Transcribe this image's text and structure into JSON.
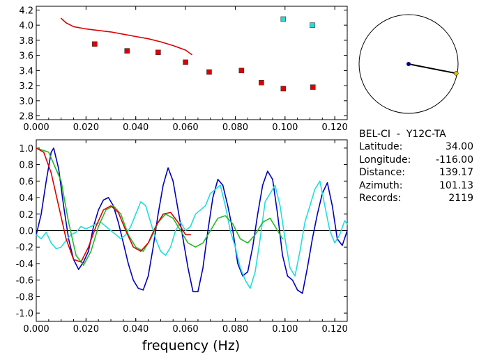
{
  "station": {
    "title": "BEL-CI  -  Y12C-TA",
    "fields": [
      {
        "label": "Latitude:",
        "value": "34.00"
      },
      {
        "label": "Longitude:",
        "value": "-116.00"
      },
      {
        "label": "Distance:",
        "value": "139.17"
      },
      {
        "label": "Azimuth:",
        "value": "101.13"
      },
      {
        "label": "Records:",
        "value": "2119"
      }
    ]
  },
  "chart_data": [
    {
      "type": "scatter",
      "xlim": [
        0.0,
        0.125
      ],
      "ylim": [
        2.75,
        4.25
      ],
      "xticks": [
        "0.000",
        "0.020",
        "0.040",
        "0.060",
        "0.080",
        "0.100",
        "0.120"
      ],
      "yticks": [
        "2.8",
        "3.0",
        "3.2",
        "3.4",
        "3.6",
        "3.8",
        "4.0",
        "4.2"
      ],
      "series": [
        {
          "kind": "line",
          "color": "#dd0000",
          "x": [
            0.01,
            0.012,
            0.015,
            0.02,
            0.025,
            0.03,
            0.035,
            0.04,
            0.045,
            0.05,
            0.055,
            0.06,
            0.0625
          ],
          "y": [
            4.09,
            4.03,
            3.98,
            3.95,
            3.93,
            3.91,
            3.88,
            3.85,
            3.82,
            3.78,
            3.73,
            3.67,
            3.61
          ]
        },
        {
          "kind": "markers",
          "color": "#dd0000",
          "x": [
            0.0235,
            0.0365,
            0.049,
            0.06,
            0.0695,
            0.0825,
            0.0905,
            0.0993,
            0.1112
          ],
          "y": [
            3.75,
            3.66,
            3.64,
            3.51,
            3.38,
            3.4,
            3.24,
            3.16,
            3.18
          ]
        },
        {
          "kind": "markers",
          "color": "#22dddd",
          "x": [
            0.0993,
            0.111
          ],
          "y": [
            4.08,
            4.0
          ]
        }
      ]
    },
    {
      "type": "line",
      "xlabel": "frequency (Hz)",
      "xlim": [
        0.0,
        0.125
      ],
      "ylim": [
        -1.1,
        1.1
      ],
      "xticks": [
        "0.000",
        "0.020",
        "0.040",
        "0.060",
        "0.080",
        "0.100",
        "0.120"
      ],
      "yticks": [
        "-1.0",
        "-0.8",
        "-0.6",
        "-0.4",
        "-0.2",
        "0.0",
        "0.2",
        "0.4",
        "0.6",
        "0.8",
        "1.0"
      ],
      "series": [
        {
          "color": "#0000bb",
          "x": [
            0,
            0.002,
            0.004,
            0.006,
            0.007,
            0.009,
            0.011,
            0.013,
            0.015,
            0.017,
            0.019,
            0.021,
            0.023,
            0.025,
            0.027,
            0.029,
            0.031,
            0.033,
            0.035,
            0.037,
            0.039,
            0.041,
            0.043,
            0.045,
            0.047,
            0.049,
            0.051,
            0.053,
            0.055,
            0.057,
            0.059,
            0.061,
            0.063,
            0.065,
            0.067,
            0.069,
            0.071,
            0.073,
            0.075,
            0.077,
            0.079,
            0.081,
            0.083,
            0.085,
            0.087,
            0.089,
            0.091,
            0.093,
            0.095,
            0.097,
            0.099,
            0.101,
            0.103,
            0.105,
            0.107,
            0.109,
            0.111,
            0.113,
            0.115,
            0.117,
            0.119,
            0.121,
            0.123,
            0.125
          ],
          "y": [
            -0.05,
            0.2,
            0.6,
            0.95,
            1.0,
            0.75,
            0.3,
            -0.1,
            -0.35,
            -0.47,
            -0.38,
            -0.25,
            0.05,
            0.25,
            0.37,
            0.4,
            0.3,
            0.1,
            -0.15,
            -0.4,
            -0.6,
            -0.7,
            -0.72,
            -0.55,
            -0.2,
            0.2,
            0.55,
            0.76,
            0.6,
            0.25,
            -0.1,
            -0.45,
            -0.74,
            -0.74,
            -0.45,
            0.0,
            0.4,
            0.62,
            0.55,
            0.3,
            0.0,
            -0.4,
            -0.55,
            -0.5,
            -0.2,
            0.2,
            0.55,
            0.72,
            0.62,
            0.2,
            -0.3,
            -0.55,
            -0.6,
            -0.72,
            -0.76,
            -0.45,
            -0.1,
            0.2,
            0.45,
            0.58,
            0.3,
            -0.1,
            -0.18,
            0.0
          ]
        },
        {
          "color": "#22dddd",
          "x": [
            0,
            0.002,
            0.004,
            0.006,
            0.008,
            0.01,
            0.012,
            0.014,
            0.016,
            0.018,
            0.02,
            0.022,
            0.024,
            0.026,
            0.028,
            0.03,
            0.032,
            0.034,
            0.036,
            0.038,
            0.04,
            0.042,
            0.044,
            0.046,
            0.048,
            0.05,
            0.052,
            0.054,
            0.056,
            0.058,
            0.06,
            0.062,
            0.064,
            0.066,
            0.068,
            0.07,
            0.072,
            0.074,
            0.076,
            0.078,
            0.08,
            0.082,
            0.084,
            0.086,
            0.088,
            0.09,
            0.092,
            0.094,
            0.096,
            0.098,
            0.1,
            0.102,
            0.104,
            0.106,
            0.108,
            0.11,
            0.112,
            0.114,
            0.116,
            0.118,
            0.12,
            0.122,
            0.124,
            0.125
          ],
          "y": [
            -0.05,
            -0.1,
            -0.02,
            -0.15,
            -0.22,
            -0.2,
            -0.12,
            -0.05,
            -0.02,
            0.05,
            0.02,
            0.05,
            0.08,
            0.1,
            0.05,
            0.0,
            -0.05,
            -0.1,
            -0.05,
            0.05,
            0.2,
            0.35,
            0.3,
            0.1,
            -0.1,
            -0.25,
            -0.3,
            -0.2,
            0.0,
            0.1,
            0.0,
            0.05,
            0.2,
            0.25,
            0.3,
            0.45,
            0.5,
            0.55,
            0.3,
            0.0,
            -0.2,
            -0.45,
            -0.6,
            -0.7,
            -0.5,
            -0.1,
            0.35,
            0.45,
            0.55,
            0.3,
            -0.1,
            -0.45,
            -0.55,
            -0.25,
            0.1,
            0.3,
            0.5,
            0.6,
            0.3,
            0.0,
            -0.15,
            -0.05,
            0.12,
            0.08
          ]
        },
        {
          "color": "#22bb22",
          "x": [
            0,
            0.005,
            0.01,
            0.013,
            0.016,
            0.019,
            0.022,
            0.025,
            0.028,
            0.031,
            0.034,
            0.037,
            0.04,
            0.043,
            0.046,
            0.049,
            0.052,
            0.055,
            0.058,
            0.061,
            0.064,
            0.067,
            0.07,
            0.073,
            0.076,
            0.079,
            0.082,
            0.085,
            0.088,
            0.091,
            0.094,
            0.097,
            0.099
          ],
          "y": [
            1.0,
            0.95,
            0.6,
            0.1,
            -0.3,
            -0.42,
            -0.25,
            0.05,
            0.25,
            0.3,
            0.2,
            -0.05,
            -0.2,
            -0.25,
            -0.1,
            0.1,
            0.2,
            0.15,
            0.0,
            -0.15,
            -0.2,
            -0.15,
            0.0,
            0.15,
            0.18,
            0.08,
            -0.1,
            -0.15,
            -0.05,
            0.1,
            0.15,
            0.0,
            -0.1
          ]
        },
        {
          "color": "#dd0000",
          "x": [
            0,
            0.003,
            0.006,
            0.009,
            0.012,
            0.015,
            0.018,
            0.021,
            0.024,
            0.027,
            0.03,
            0.033,
            0.036,
            0.039,
            0.042,
            0.045,
            0.048,
            0.051,
            0.054,
            0.057,
            0.06,
            0.062
          ],
          "y": [
            1.0,
            0.95,
            0.7,
            0.3,
            -0.1,
            -0.35,
            -0.38,
            -0.2,
            0.05,
            0.25,
            0.3,
            0.22,
            0.0,
            -0.2,
            -0.25,
            -0.15,
            0.05,
            0.2,
            0.22,
            0.1,
            -0.05,
            -0.05
          ]
        }
      ]
    },
    {
      "type": "scatter",
      "polar": true,
      "center": {
        "color": "#000088",
        "x": 0,
        "y": 0
      },
      "endpoint": {
        "color": "#ddbb00",
        "azimuth_deg": 101.13,
        "radius": 0.98
      }
    }
  ]
}
